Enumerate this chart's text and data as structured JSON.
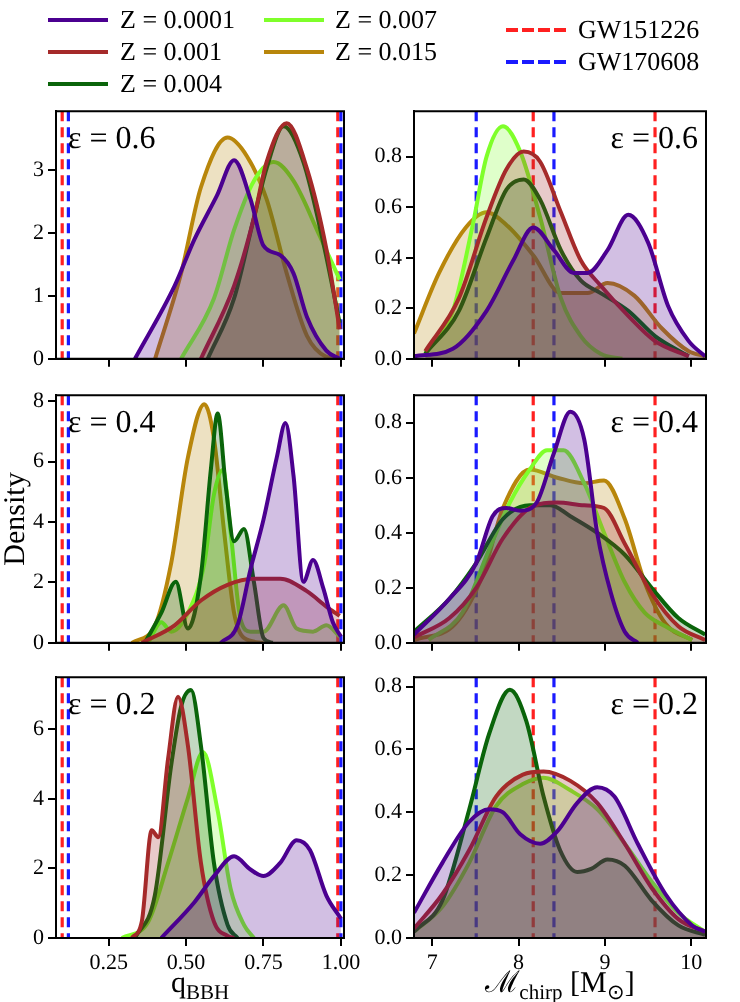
{
  "chart_data": [
    {
      "type": "area",
      "legend": "top",
      "tick_labels": "y",
      "grid": false,
      "annotations": [
        "ε = 0.6"
      ],
      "xlim": [
        0.08,
        1.01
      ],
      "xticks": [
        {
          "value": 0.25,
          "label": null
        },
        {
          "value": 0.5,
          "label": null
        },
        {
          "value": 0.75,
          "label": null
        },
        {
          "value": 1,
          "label": null
        }
      ],
      "ylim": [
        0,
        3.94
      ],
      "yticks": [
        0,
        1,
        2,
        3
      ],
      "ref_lines": [
        {
          "axis": "x",
          "value": 0.1,
          "color": "#ff2020",
          "line_style": "dashed"
        },
        {
          "axis": "x",
          "value": 0.99,
          "color": "#ff2020",
          "line_style": "dashed"
        },
        {
          "axis": "x",
          "value": 0.12,
          "color": "#1a1aff",
          "line_style": "dashed"
        },
        {
          "axis": "x",
          "value": 1.0,
          "color": "#1a1aff",
          "line_style": "dashed"
        }
      ],
      "series": [
        {
          "name": "Z = 0.0001",
          "color": "#4b0090",
          "x": [
            0.335,
            0.463,
            0.527,
            0.6,
            0.655,
            0.708,
            0.75,
            0.804,
            0.847,
            0.89,
            0.953,
            0.996
          ],
          "values": [
            0,
            1.16,
            1.9,
            2.6,
            3.16,
            2.54,
            1.8,
            1.65,
            1.36,
            0.67,
            0.13,
            0
          ]
        },
        {
          "name": "Z = 0.001",
          "color": "#a52a2a",
          "x": [
            0.548,
            0.655,
            0.719,
            0.76,
            0.825,
            0.89,
            0.953,
            0.996
          ],
          "values": [
            0,
            1.16,
            2.24,
            3.13,
            3.75,
            3.03,
            1.75,
            0.47
          ]
        },
        {
          "name": "Z = 0.004",
          "color": "#0a640a",
          "x": [
            0.57,
            0.655,
            0.719,
            0.76,
            0.815,
            0.879,
            0.943,
            0.996
          ],
          "values": [
            0,
            0.96,
            2.24,
            3.03,
            3.7,
            3.13,
            1.85,
            0.57
          ]
        },
        {
          "name": "Z = 0.007",
          "color": "#7fff2a",
          "x": [
            0.484,
            0.59,
            0.655,
            0.719,
            0.783,
            0.847,
            0.932,
            0.996
          ],
          "values": [
            0,
            0.96,
            2.05,
            2.83,
            3.13,
            2.83,
            1.95,
            1.26
          ]
        },
        {
          "name": "Z = 0.015",
          "color": "#b8860b",
          "x": [
            0.4,
            0.484,
            0.548,
            0.634,
            0.697,
            0.76,
            0.825,
            0.89,
            0.953,
            0.99
          ],
          "values": [
            0,
            1.36,
            2.73,
            3.52,
            3.22,
            2.54,
            1.36,
            0.37,
            0.03,
            0
          ]
        }
      ]
    },
    {
      "type": "area",
      "legend": "top",
      "tick_labels": "y",
      "grid": false,
      "annotations": [
        "ε = 0.6"
      ],
      "xlim": [
        6.79,
        10.17
      ],
      "xticks": [
        {
          "value": 7,
          "label": null
        },
        {
          "value": 8,
          "label": null
        },
        {
          "value": 9,
          "label": null
        },
        {
          "value": 10,
          "label": null
        }
      ],
      "ylim": [
        0,
        0.98
      ],
      "yticks": [
        {
          "value": 0,
          "label": "0.0"
        },
        {
          "value": 0.2,
          "label": "0.2"
        },
        {
          "value": 0.4,
          "label": "0.4"
        },
        {
          "value": 0.6,
          "label": "0.6"
        },
        {
          "value": 0.8,
          "label": "0.8"
        }
      ],
      "ref_lines": [
        {
          "axis": "x",
          "value": 8.17,
          "color": "#ff2020",
          "line_style": "dashed",
          "label": "GW151226"
        },
        {
          "axis": "x",
          "value": 9.58,
          "color": "#ff2020",
          "line_style": "dashed"
        },
        {
          "axis": "x",
          "value": 7.51,
          "color": "#1a1aff",
          "line_style": "dashed",
          "label": "GW170608"
        },
        {
          "axis": "x",
          "value": 8.41,
          "color": "#1a1aff",
          "line_style": "dashed"
        }
      ],
      "series": [
        {
          "color": "#4b0090",
          "x": [
            6.79,
            7.24,
            7.63,
            7.94,
            8.17,
            8.41,
            8.64,
            8.8,
            9.03,
            9.27,
            9.5,
            9.73,
            9.97,
            10.16
          ],
          "values": [
            0.01,
            0.04,
            0.19,
            0.39,
            0.52,
            0.43,
            0.34,
            0.34,
            0.43,
            0.57,
            0.46,
            0.21,
            0.07,
            0.01
          ]
        },
        {
          "color": "#a52a2a",
          "x": [
            6.92,
            7.31,
            7.63,
            7.86,
            8.06,
            8.25,
            8.49,
            8.72,
            8.95,
            9.27,
            9.58,
            9.97
          ],
          "values": [
            0.03,
            0.24,
            0.56,
            0.75,
            0.82,
            0.78,
            0.58,
            0.39,
            0.29,
            0.17,
            0.07,
            0.01
          ]
        },
        {
          "color": "#0a640a",
          "x": [
            6.92,
            7.31,
            7.63,
            7.86,
            8.06,
            8.25,
            8.49,
            8.72,
            8.95,
            9.27,
            9.58,
            9.97
          ],
          "values": [
            0.02,
            0.19,
            0.48,
            0.67,
            0.71,
            0.63,
            0.43,
            0.31,
            0.26,
            0.19,
            0.09,
            0.01
          ]
        },
        {
          "color": "#7fff2a",
          "x": [
            6.92,
            7.24,
            7.47,
            7.63,
            7.82,
            8.02,
            8.25,
            8.49,
            8.72,
            8.95,
            9.2
          ],
          "values": [
            0.02,
            0.19,
            0.53,
            0.8,
            0.92,
            0.82,
            0.56,
            0.24,
            0.09,
            0.02,
            0
          ]
        },
        {
          "color": "#b8860b",
          "x": [
            6.79,
            7.08,
            7.39,
            7.63,
            7.86,
            8.17,
            8.49,
            8.8,
            9.03,
            9.34,
            9.66,
            9.97,
            10.16
          ],
          "values": [
            0.1,
            0.34,
            0.52,
            0.58,
            0.53,
            0.41,
            0.26,
            0.26,
            0.3,
            0.25,
            0.12,
            0.03,
            0.01
          ]
        }
      ]
    },
    {
      "type": "area",
      "tick_labels": "y",
      "grid": false,
      "ylabel": "Density",
      "annotations": [
        "ε = 0.4"
      ],
      "xlim": [
        0.08,
        1.01
      ],
      "xticks": [
        {
          "value": 0.25,
          "label": null
        },
        {
          "value": 0.5,
          "label": null
        },
        {
          "value": 0.75,
          "label": null
        },
        {
          "value": 1,
          "label": null
        }
      ],
      "ylim": [
        0,
        8.2
      ],
      "yticks": [
        0,
        2,
        4,
        6,
        8
      ],
      "ref_lines": [
        {
          "axis": "x",
          "value": 0.1,
          "color": "#ff2020",
          "line_style": "dashed"
        },
        {
          "axis": "x",
          "value": 0.99,
          "color": "#ff2020",
          "line_style": "dashed"
        },
        {
          "axis": "x",
          "value": 0.12,
          "color": "#1a1aff",
          "line_style": "dashed"
        },
        {
          "axis": "x",
          "value": 1.0,
          "color": "#1a1aff",
          "line_style": "dashed"
        }
      ],
      "series": [
        {
          "color": "#4b0090",
          "x": [
            0.612,
            0.666,
            0.708,
            0.75,
            0.793,
            0.821,
            0.847,
            0.879,
            0.91,
            0.943,
            0.974,
            1.0
          ],
          "values": [
            0,
            0.58,
            2.43,
            4.08,
            6.14,
            7.28,
            5.53,
            2.02,
            2.74,
            1.81,
            0.68,
            0.21
          ]
        },
        {
          "color": "#a52a2a",
          "x": [
            0.357,
            0.463,
            0.548,
            0.634,
            0.719,
            0.804,
            0.89,
            0.953,
            0.996
          ],
          "values": [
            0,
            0.58,
            1.4,
            1.92,
            2.12,
            2.12,
            1.71,
            1.2,
            0.89
          ]
        },
        {
          "color": "#0a640a",
          "x": [
            0.367,
            0.42,
            0.467,
            0.506,
            0.548,
            0.58,
            0.602,
            0.629,
            0.655,
            0.687,
            0.719,
            0.75,
            0.78
          ],
          "values": [
            0,
            0.99,
            2.02,
            0.47,
            2.23,
            5.73,
            7.59,
            5.11,
            3.36,
            3.77,
            2.02,
            0.16,
            0
          ]
        },
        {
          "color": "#7fff2a",
          "x": [
            0.378,
            0.42,
            0.452,
            0.506,
            0.559,
            0.59,
            0.619,
            0.644,
            0.676,
            0.708,
            0.75,
            0.815,
            0.857,
            0.91,
            0.953,
            0.996
          ],
          "values": [
            0,
            0.68,
            0.37,
            0.99,
            2.64,
            4.91,
            5.73,
            3.67,
            0.78,
            0.37,
            0.37,
            1.24,
            0.47,
            0.37,
            0.58,
            0.21
          ]
        },
        {
          "color": "#b8860b",
          "x": [
            0.325,
            0.4,
            0.452,
            0.506,
            0.559,
            0.59,
            0.623,
            0.655,
            0.687,
            0.75
          ],
          "values": [
            0,
            0.58,
            2.64,
            6.14,
            7.9,
            6.76,
            3.67,
            0.99,
            0.16,
            0
          ]
        }
      ]
    },
    {
      "type": "area",
      "tick_labels": "y",
      "grid": false,
      "annotations": [
        "ε = 0.4"
      ],
      "xlim": [
        6.79,
        10.17
      ],
      "xticks": [
        {
          "value": 7,
          "label": null
        },
        {
          "value": 8,
          "label": null
        },
        {
          "value": 9,
          "label": null
        },
        {
          "value": 10,
          "label": null
        }
      ],
      "ylim": [
        0,
        0.9
      ],
      "yticks": [
        {
          "value": 0,
          "label": "0.0"
        },
        {
          "value": 0.2,
          "label": "0.2"
        },
        {
          "value": 0.4,
          "label": "0.4"
        },
        {
          "value": 0.6,
          "label": "0.6"
        },
        {
          "value": 0.8,
          "label": "0.8"
        }
      ],
      "ref_lines": [
        {
          "axis": "x",
          "value": 8.17,
          "color": "#ff2020",
          "line_style": "dashed"
        },
        {
          "axis": "x",
          "value": 9.58,
          "color": "#ff2020",
          "line_style": "dashed"
        },
        {
          "axis": "x",
          "value": 7.51,
          "color": "#1a1aff",
          "line_style": "dashed"
        },
        {
          "axis": "x",
          "value": 8.41,
          "color": "#1a1aff",
          "line_style": "dashed"
        }
      ],
      "series": [
        {
          "color": "#4b0090",
          "x": [
            6.79,
            7.2,
            7.51,
            7.7,
            7.86,
            8.02,
            8.21,
            8.41,
            8.6,
            8.76,
            8.91,
            9.07,
            9.23,
            9.38
          ],
          "values": [
            0.03,
            0.16,
            0.29,
            0.46,
            0.49,
            0.48,
            0.51,
            0.69,
            0.84,
            0.74,
            0.4,
            0.18,
            0.04,
            0
          ]
        },
        {
          "color": "#a52a2a",
          "x": [
            6.79,
            7.2,
            7.51,
            7.82,
            8.13,
            8.45,
            8.76,
            8.99,
            9.23,
            9.54,
            9.85,
            10.16
          ],
          "values": [
            0.02,
            0.09,
            0.2,
            0.38,
            0.49,
            0.51,
            0.5,
            0.49,
            0.36,
            0.18,
            0.06,
            0.01
          ]
        },
        {
          "color": "#0a640a",
          "x": [
            6.79,
            7.2,
            7.51,
            7.82,
            8.13,
            8.37,
            8.6,
            8.91,
            9.23,
            9.54,
            9.85,
            10.16
          ],
          "values": [
            0.04,
            0.16,
            0.29,
            0.45,
            0.5,
            0.5,
            0.46,
            0.4,
            0.32,
            0.2,
            0.09,
            0.03
          ]
        },
        {
          "color": "#7fff2a",
          "x": [
            6.96,
            7.35,
            7.66,
            7.9,
            8.13,
            8.33,
            8.52,
            8.76,
            8.99,
            9.23,
            9.46,
            9.7,
            10.01
          ],
          "values": [
            0.01,
            0.11,
            0.34,
            0.51,
            0.63,
            0.7,
            0.7,
            0.58,
            0.4,
            0.22,
            0.11,
            0.06,
            0.01
          ]
        },
        {
          "color": "#b8860b",
          "x": [
            6.79,
            7.27,
            7.59,
            7.82,
            8.13,
            8.45,
            8.76,
            8.99,
            9.23,
            9.46,
            9.7,
            10.01
          ],
          "values": [
            0.01,
            0.07,
            0.25,
            0.49,
            0.63,
            0.6,
            0.58,
            0.59,
            0.45,
            0.22,
            0.07,
            0.01
          ]
        }
      ]
    },
    {
      "type": "area",
      "grid": false,
      "xlabel": "q$_{BBH}$",
      "annotations": [
        "ε = 0.2"
      ],
      "xlim": [
        0.08,
        1.01
      ],
      "xticks": [
        {
          "value": 0.25,
          "label": "0.25"
        },
        {
          "value": 0.5,
          "label": "0.50"
        },
        0.75,
        {
          "value": 1,
          "label": "1.00"
        }
      ],
      "ylim": [
        0,
        7.5
      ],
      "yticks": [
        0,
        2,
        4,
        6
      ],
      "ref_lines": [
        {
          "axis": "x",
          "value": 0.1,
          "color": "#ff2020",
          "line_style": "dashed"
        },
        {
          "axis": "x",
          "value": 0.99,
          "color": "#ff2020",
          "line_style": "dashed"
        },
        {
          "axis": "x",
          "value": 0.12,
          "color": "#1a1aff",
          "line_style": "dashed"
        },
        {
          "axis": "x",
          "value": 1.0,
          "color": "#1a1aff",
          "line_style": "dashed"
        }
      ],
      "series": [
        {
          "color": "#4b0090",
          "x": [
            0.42,
            0.527,
            0.59,
            0.655,
            0.708,
            0.75,
            0.804,
            0.857,
            0.9,
            0.953,
            1.0
          ],
          "values": [
            0,
            1.03,
            1.78,
            2.35,
            1.97,
            1.78,
            2.16,
            2.81,
            2.53,
            1.22,
            0.56
          ]
        },
        {
          "color": "#a52a2a",
          "x": [
            0.325,
            0.357,
            0.389,
            0.41,
            0.442,
            0.474,
            0.506,
            0.548,
            0.59,
            0.634,
            0.655
          ],
          "values": [
            0,
            0.47,
            3.1,
            2.9,
            5.16,
            6.94,
            5.53,
            2.16,
            0.47,
            0.06,
            0
          ]
        },
        {
          "color": "#0a640a",
          "x": [
            0.335,
            0.399,
            0.452,
            0.484,
            0.516,
            0.548,
            0.59,
            0.634,
            0.666
          ],
          "values": [
            0,
            1.22,
            4.97,
            6.66,
            7.13,
            5.53,
            2.16,
            0.38,
            0
          ]
        },
        {
          "color": "#7fff2a",
          "x": [
            0.293,
            0.378,
            0.442,
            0.506,
            0.555,
            0.602,
            0.644,
            0.687,
            0.719
          ],
          "values": [
            0,
            0.47,
            2.16,
            4.03,
            5.35,
            3.66,
            1.41,
            0.38,
            0
          ]
        }
      ]
    },
    {
      "type": "area",
      "grid": false,
      "xlabel": "ℳ$_{chirp}$ [M$_{⊙}$]",
      "annotations": [
        "ε = 0.2"
      ],
      "xlim": [
        6.79,
        10.17
      ],
      "xticks": [
        7,
        8,
        9,
        10
      ],
      "ylim": [
        0,
        0.83
      ],
      "yticks": [
        {
          "value": 0,
          "label": "0.0"
        },
        {
          "value": 0.2,
          "label": "0.2"
        },
        {
          "value": 0.4,
          "label": "0.4"
        },
        {
          "value": 0.6,
          "label": "0.6"
        },
        {
          "value": 0.8,
          "label": "0.8"
        }
      ],
      "ref_lines": [
        {
          "axis": "x",
          "value": 8.17,
          "color": "#ff2020",
          "line_style": "dashed"
        },
        {
          "axis": "x",
          "value": 9.58,
          "color": "#ff2020",
          "line_style": "dashed"
        },
        {
          "axis": "x",
          "value": 7.51,
          "color": "#1a1aff",
          "line_style": "dashed"
        },
        {
          "axis": "x",
          "value": 8.41,
          "color": "#1a1aff",
          "line_style": "dashed"
        }
      ],
      "series": [
        {
          "color": "#4b0090",
          "x": [
            6.79,
            7.12,
            7.43,
            7.66,
            7.82,
            8.02,
            8.25,
            8.45,
            8.68,
            8.91,
            9.11,
            9.38,
            9.7,
            10.01,
            10.16
          ],
          "values": [
            0.08,
            0.24,
            0.37,
            0.41,
            0.4,
            0.33,
            0.3,
            0.34,
            0.43,
            0.48,
            0.45,
            0.3,
            0.14,
            0.04,
            0.02
          ]
        },
        {
          "color": "#a52a2a",
          "x": [
            6.79,
            7.12,
            7.43,
            7.74,
            8.05,
            8.29,
            8.6,
            8.91,
            9.23,
            9.54,
            9.85,
            10.16
          ],
          "values": [
            0.03,
            0.14,
            0.28,
            0.45,
            0.52,
            0.53,
            0.5,
            0.43,
            0.3,
            0.16,
            0.06,
            0.02
          ]
        },
        {
          "color": "#0a640a",
          "x": [
            6.79,
            7.12,
            7.43,
            7.66,
            7.9,
            8.09,
            8.29,
            8.48,
            8.68,
            8.84,
            9.03,
            9.23,
            9.54,
            9.85,
            10.16
          ],
          "values": [
            0.02,
            0.12,
            0.41,
            0.65,
            0.79,
            0.69,
            0.45,
            0.28,
            0.21,
            0.22,
            0.25,
            0.23,
            0.12,
            0.04,
            0.01
          ]
        },
        {
          "color": "#7fff2a",
          "x": [
            6.79,
            7.12,
            7.43,
            7.74,
            8.05,
            8.29,
            8.6,
            8.91,
            9.23,
            9.54,
            9.85,
            10.16
          ],
          "values": [
            0.02,
            0.1,
            0.24,
            0.42,
            0.49,
            0.51,
            0.47,
            0.41,
            0.3,
            0.18,
            0.08,
            0.02
          ]
        }
      ]
    }
  ]
}
